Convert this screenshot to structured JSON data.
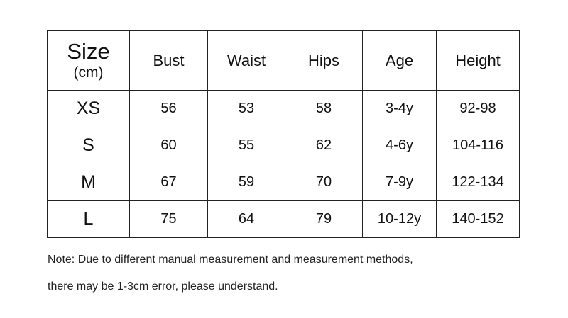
{
  "table": {
    "header": {
      "size_title": "Size",
      "size_unit": "(cm)",
      "columns": [
        "Bust",
        "Waist",
        "Hips",
        "Age",
        "Height"
      ]
    },
    "rows": [
      {
        "size": "XS",
        "values": [
          "56",
          "53",
          "58",
          "3-4y",
          "92-98"
        ]
      },
      {
        "size": "S",
        "values": [
          "60",
          "55",
          "62",
          "4-6y",
          "104-116"
        ]
      },
      {
        "size": "M",
        "values": [
          "67",
          "59",
          "70",
          "7-9y",
          "122-134"
        ]
      },
      {
        "size": "L",
        "values": [
          "75",
          "64",
          "79",
          "10-12y",
          "140-152"
        ]
      }
    ]
  },
  "note": {
    "line1": "Note: Due to different manual measurement and measurement methods,",
    "line2": "there may be 1-3cm error, please understand."
  }
}
